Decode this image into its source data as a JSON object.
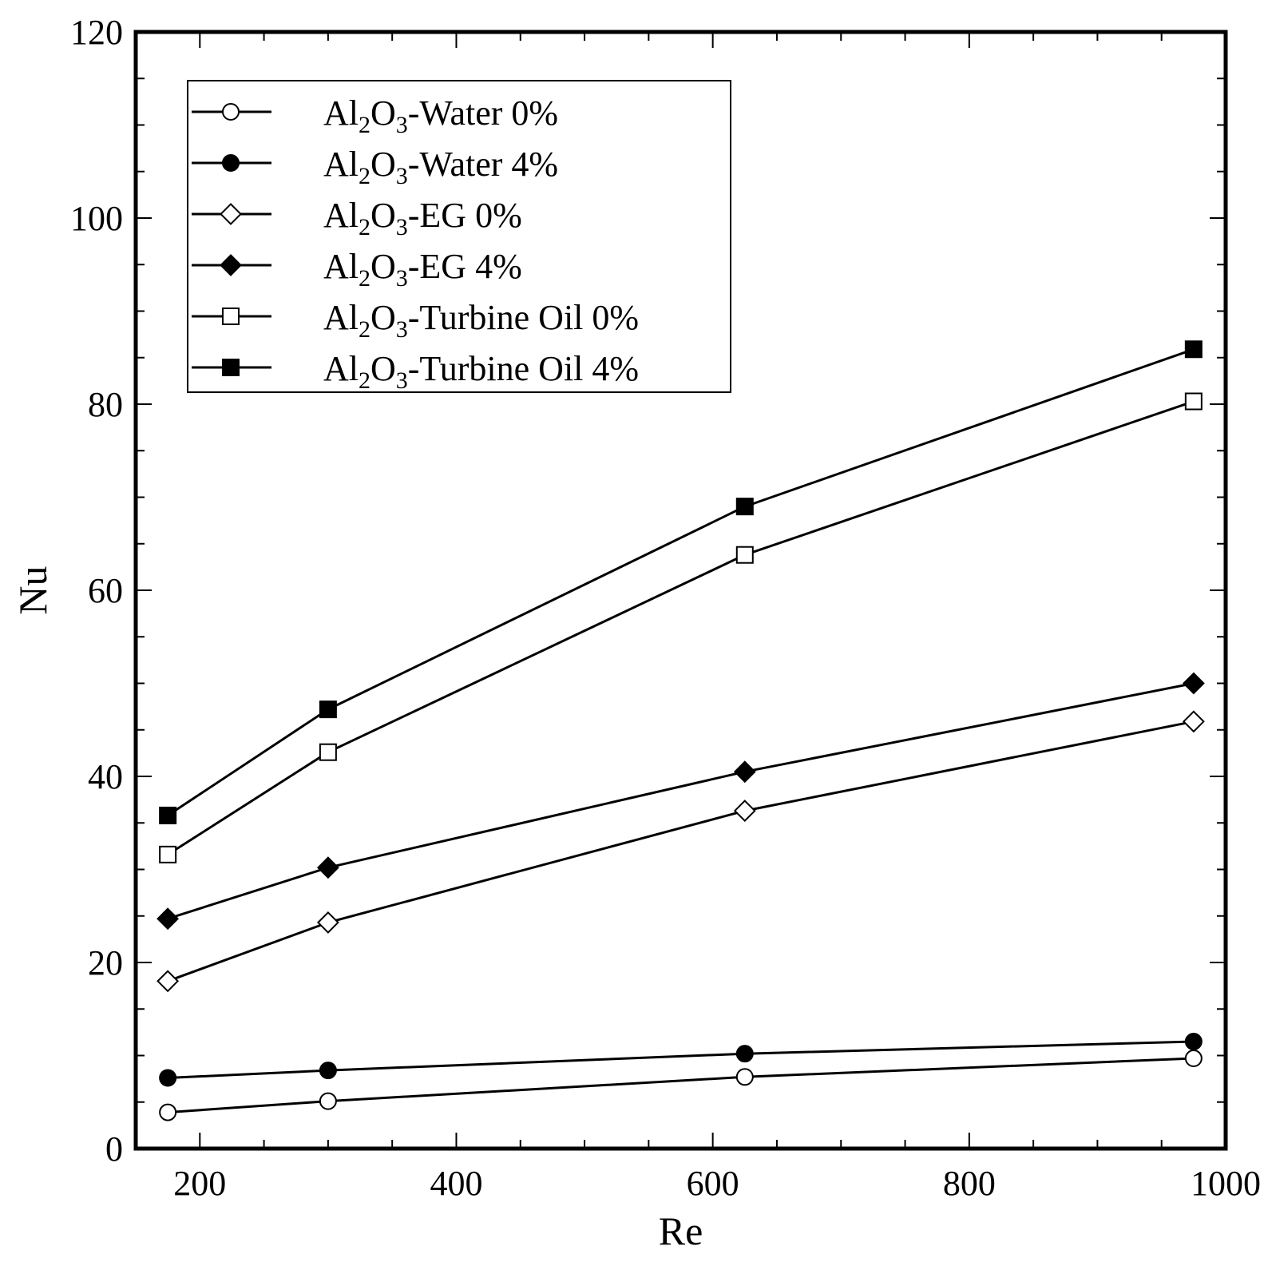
{
  "chart_data": {
    "type": "line",
    "title": "",
    "xlabel": "Re",
    "ylabel": "Nu",
    "xlim": [
      150,
      1000
    ],
    "ylim": [
      0,
      120
    ],
    "xticks": [
      200,
      400,
      600,
      800,
      1000
    ],
    "yticks": [
      0,
      20,
      40,
      60,
      80,
      100,
      120
    ],
    "x_minor_step": 50,
    "y_minor_step": 5,
    "legend_position": "top-left",
    "x": [
      175,
      300,
      625,
      975
    ],
    "series": [
      {
        "name": "Al2O3-Water 0%",
        "base": "Al",
        "sub1": "2",
        "mid": "O",
        "sub2": "3",
        "rest": "-Water 0%",
        "marker": "circle",
        "filled": false,
        "values": [
          3.9,
          5.1,
          7.7,
          9.7
        ]
      },
      {
        "name": "Al2O3-Water 4%",
        "base": "Al",
        "sub1": "2",
        "mid": "O",
        "sub2": "3",
        "rest": "-Water 4%",
        "marker": "circle",
        "filled": true,
        "values": [
          7.6,
          8.4,
          10.2,
          11.5
        ]
      },
      {
        "name": "Al2O3-EG 0%",
        "base": "Al",
        "sub1": "2",
        "mid": "O",
        "sub2": "3",
        "rest": "-EG 0%",
        "marker": "diamond",
        "filled": false,
        "values": [
          18,
          24.3,
          36.3,
          45.9
        ]
      },
      {
        "name": "Al2O3-EG 4%",
        "base": "Al",
        "sub1": "2",
        "mid": "O",
        "sub2": "3",
        "rest": "-EG 4%",
        "marker": "diamond",
        "filled": true,
        "values": [
          24.7,
          30.2,
          40.5,
          50
        ]
      },
      {
        "name": "Al2O3-Turbine Oil 0%",
        "base": "Al",
        "sub1": "2",
        "mid": "O",
        "sub2": "3",
        "rest": "-Turbine Oil 0%",
        "marker": "square",
        "filled": false,
        "values": [
          31.6,
          42.6,
          63.8,
          80.3
        ]
      },
      {
        "name": "Al2O3-Turbine Oil 4%",
        "base": "Al",
        "sub1": "2",
        "mid": "O",
        "sub2": "3",
        "rest": "-Turbine Oil 4%",
        "marker": "square",
        "filled": true,
        "values": [
          35.8,
          47.2,
          69,
          85.9
        ]
      }
    ]
  }
}
